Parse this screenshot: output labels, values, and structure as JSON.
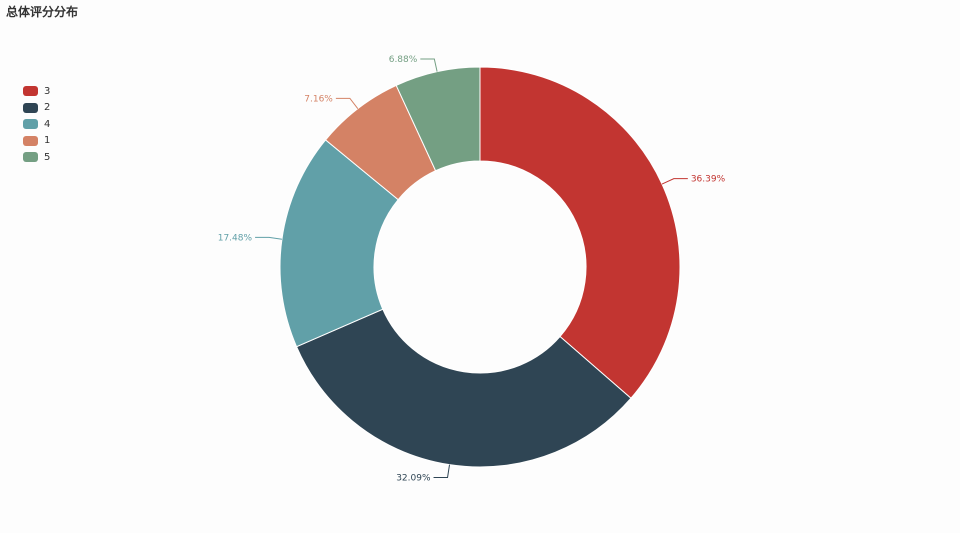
{
  "chart_data": {
    "type": "pie",
    "title": "总体评分分布",
    "categories": [
      "3",
      "2",
      "4",
      "1",
      "5"
    ],
    "values": [
      36.39,
      32.09,
      17.48,
      7.16,
      6.88
    ],
    "labels": [
      "36.39%",
      "32.09%",
      "17.48%",
      "7.16%",
      "6.88%"
    ],
    "colors": [
      "#c23531",
      "#2f4554",
      "#61a0a8",
      "#d48265",
      "#749f83"
    ],
    "legend_position": "top-left",
    "donut": true
  }
}
